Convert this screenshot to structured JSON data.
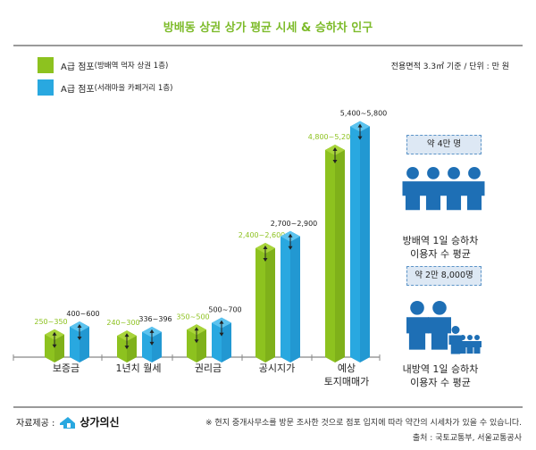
{
  "title": "방배동 상권 상가 평균 시세 & 승하차 인구",
  "unit_note": "전용면적 3.3㎡ 기준 / 단위 : 만 원",
  "chart_data": {
    "type": "bar",
    "title": "방배동 상권 상가 평균 시세 & 승하차 인구",
    "categories": [
      "보증금",
      "1년치 월세",
      "권리금",
      "공시지가",
      "예상\n토지매매가"
    ],
    "series": [
      {
        "name": "A급 점포(방배역 먹자 상권 1층)",
        "color": "#8dc21f",
        "low": [
          250,
          240,
          350,
          2400,
          4800
        ],
        "high": [
          350,
          300,
          500,
          2600,
          5200
        ],
        "labels": [
          "250~350",
          "240~300",
          "350~500",
          "2,400~2,600",
          "4,800~5,200"
        ]
      },
      {
        "name": "A급 점포(서래마을 카페거리 1층)",
        "color": "#29a8e0",
        "low": [
          400,
          336,
          500,
          2700,
          5400
        ],
        "high": [
          600,
          396,
          700,
          2900,
          5800
        ],
        "labels": [
          "400~600",
          "336~396",
          "500~700",
          "2,700~2,900",
          "5,400~5,800"
        ]
      }
    ],
    "legend_position": "top-left",
    "grid": false
  },
  "legend": [
    {
      "main": "A급 점포",
      "sub": "(방배역 먹자 상권 1층)",
      "color": "#8dc21f"
    },
    {
      "main": "A급 점포",
      "sub": "(서래마을 카페거리 1층)",
      "color": "#29a8e0"
    }
  ],
  "panel": {
    "top": {
      "badge": "약 4만 명",
      "line1": "방배역 1일 승하차",
      "line2": "이용자 수 평균"
    },
    "bottom": {
      "badge": "약 2만 8,000명",
      "line1": "내방역 1일 승하차",
      "line2": "이용자 수 평균"
    },
    "icon_color": "#1e6fb5"
  },
  "footer": {
    "provider_label": "자료제공 :",
    "logo_text": "상가의신",
    "note": "※ 현지 중개사무소를 방문 조사한 것으로 점포 입지에 따라 약간의 시세차가 있을 수 있습니다.",
    "source": "출처 : 국토교통부, 서울교통공사"
  }
}
